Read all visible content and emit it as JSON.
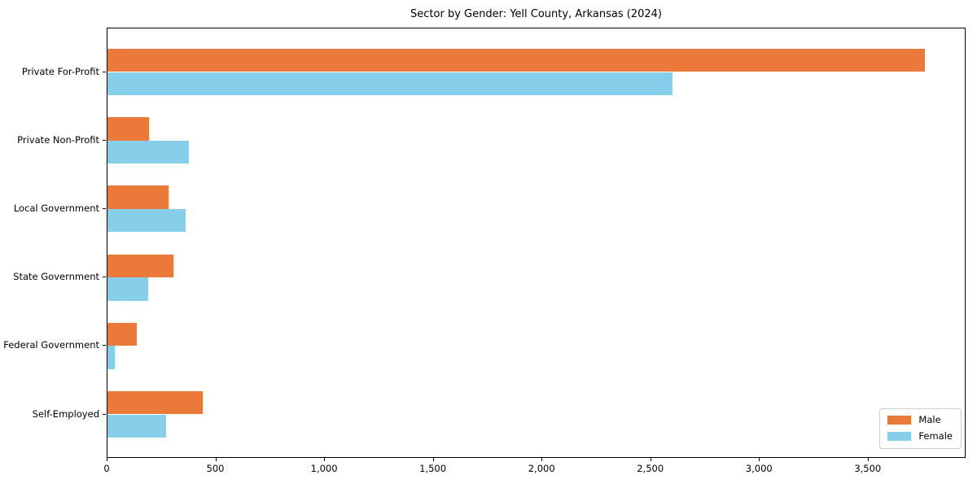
{
  "chart_data": {
    "type": "bar",
    "orientation": "horizontal",
    "title": "Sector by Gender: Yell County, Arkansas (2024)",
    "categories": [
      "Private For-Profit",
      "Private Non-Profit",
      "Local Government",
      "State Government",
      "Federal Government",
      "Self-Employed"
    ],
    "series": [
      {
        "name": "Male",
        "color": "#EB7A3A",
        "values": [
          3760,
          192,
          281,
          304,
          134,
          439
        ]
      },
      {
        "name": "Female",
        "color": "#87CEEB",
        "values": [
          2600,
          373,
          358,
          188,
          33,
          268
        ]
      }
    ],
    "xlim": [
      0,
      3950
    ],
    "xtick_values": [
      0,
      500,
      1000,
      1500,
      2000,
      2500,
      3000,
      3500
    ],
    "xtick_labels": [
      "0",
      "500",
      "1,000",
      "1,500",
      "2,000",
      "2,500",
      "3,000",
      "3,500"
    ],
    "ylabel": "",
    "xlabel": "",
    "grid": false,
    "legend": {
      "position": "lower right"
    }
  }
}
